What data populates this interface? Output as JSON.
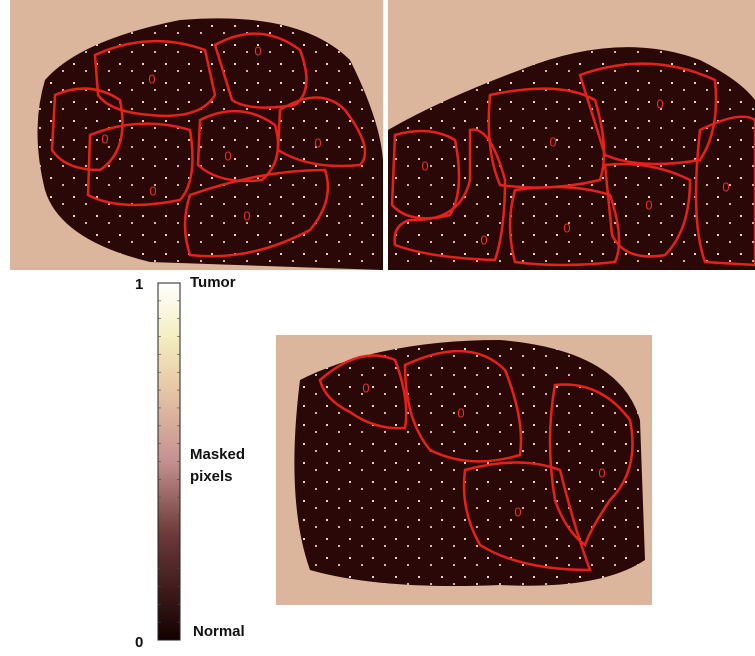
{
  "panels": [
    {
      "region_labels": [
        "0",
        "0",
        "0",
        "0",
        "0",
        "0",
        "0"
      ]
    },
    {
      "region_labels": [
        "0",
        "0",
        "0",
        "0",
        "0",
        "0",
        "0"
      ]
    },
    {
      "region_labels": [
        "0",
        "0",
        "0",
        "0"
      ]
    }
  ],
  "colorbar": {
    "max_label": "1",
    "min_label": "0",
    "top_label": "Tumor",
    "middle_label": "Masked pixels",
    "bottom_label": "Normal"
  }
}
